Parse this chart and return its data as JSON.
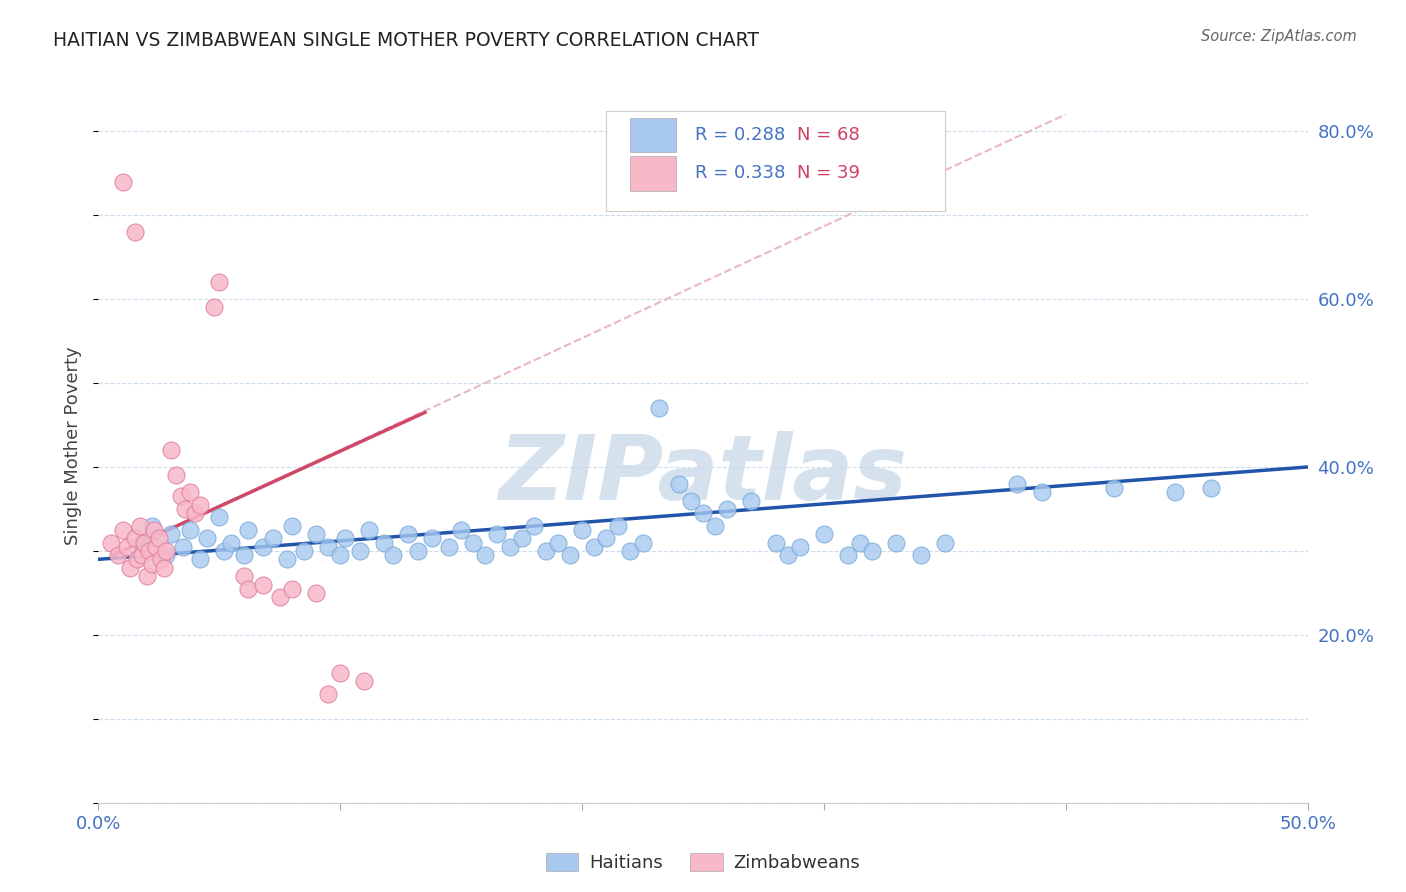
{
  "title": "HAITIAN VS ZIMBABWEAN SINGLE MOTHER POVERTY CORRELATION CHART",
  "source": "Source: ZipAtlas.com",
  "ylabel_label": "Single Mother Poverty",
  "xlim": [
    0.0,
    0.5
  ],
  "ylim": [
    0.0,
    0.85
  ],
  "xtick_positions": [
    0.0,
    0.1,
    0.2,
    0.3,
    0.4,
    0.5
  ],
  "xtick_labels": [
    "0.0%",
    "",
    "",
    "",
    "",
    "50.0%"
  ],
  "ytick_positions": [
    0.2,
    0.4,
    0.6,
    0.8
  ],
  "ytick_labels": [
    "20.0%",
    "40.0%",
    "60.0%",
    "80.0%"
  ],
  "watermark": "ZIPatlas",
  "blue_color": "#A8C8F0",
  "blue_edge_color": "#7AAAD8",
  "pink_color": "#F8B8C8",
  "pink_edge_color": "#E080A0",
  "blue_line_color": "#2255AA",
  "pink_line_color": "#D04868",
  "pink_dashed_color": "#E8B8C8",
  "grid_color": "#CCDDEE",
  "background_color": "#FFFFFF",
  "text_color": "#4472C4",
  "title_color": "#222222",
  "legend_r_color": "#4472C4",
  "legend_n_color": "#D04060",
  "blue_points": [
    [
      0.018,
      0.31
    ],
    [
      0.022,
      0.33
    ],
    [
      0.028,
      0.295
    ],
    [
      0.03,
      0.32
    ],
    [
      0.035,
      0.305
    ],
    [
      0.038,
      0.325
    ],
    [
      0.042,
      0.29
    ],
    [
      0.045,
      0.315
    ],
    [
      0.05,
      0.34
    ],
    [
      0.052,
      0.3
    ],
    [
      0.055,
      0.31
    ],
    [
      0.06,
      0.295
    ],
    [
      0.062,
      0.325
    ],
    [
      0.068,
      0.305
    ],
    [
      0.072,
      0.315
    ],
    [
      0.078,
      0.29
    ],
    [
      0.08,
      0.33
    ],
    [
      0.085,
      0.3
    ],
    [
      0.09,
      0.32
    ],
    [
      0.095,
      0.305
    ],
    [
      0.1,
      0.295
    ],
    [
      0.102,
      0.315
    ],
    [
      0.108,
      0.3
    ],
    [
      0.112,
      0.325
    ],
    [
      0.118,
      0.31
    ],
    [
      0.122,
      0.295
    ],
    [
      0.128,
      0.32
    ],
    [
      0.132,
      0.3
    ],
    [
      0.138,
      0.315
    ],
    [
      0.145,
      0.305
    ],
    [
      0.15,
      0.325
    ],
    [
      0.155,
      0.31
    ],
    [
      0.16,
      0.295
    ],
    [
      0.165,
      0.32
    ],
    [
      0.17,
      0.305
    ],
    [
      0.175,
      0.315
    ],
    [
      0.18,
      0.33
    ],
    [
      0.185,
      0.3
    ],
    [
      0.19,
      0.31
    ],
    [
      0.195,
      0.295
    ],
    [
      0.2,
      0.325
    ],
    [
      0.205,
      0.305
    ],
    [
      0.21,
      0.315
    ],
    [
      0.215,
      0.33
    ],
    [
      0.22,
      0.3
    ],
    [
      0.225,
      0.31
    ],
    [
      0.232,
      0.47
    ],
    [
      0.24,
      0.38
    ],
    [
      0.245,
      0.36
    ],
    [
      0.25,
      0.345
    ],
    [
      0.255,
      0.33
    ],
    [
      0.26,
      0.35
    ],
    [
      0.27,
      0.36
    ],
    [
      0.28,
      0.31
    ],
    [
      0.285,
      0.295
    ],
    [
      0.29,
      0.305
    ],
    [
      0.3,
      0.32
    ],
    [
      0.31,
      0.295
    ],
    [
      0.315,
      0.31
    ],
    [
      0.32,
      0.3
    ],
    [
      0.33,
      0.31
    ],
    [
      0.34,
      0.295
    ],
    [
      0.35,
      0.31
    ],
    [
      0.38,
      0.38
    ],
    [
      0.39,
      0.37
    ],
    [
      0.42,
      0.375
    ],
    [
      0.445,
      0.37
    ],
    [
      0.46,
      0.375
    ]
  ],
  "pink_points": [
    [
      0.005,
      0.31
    ],
    [
      0.008,
      0.295
    ],
    [
      0.01,
      0.325
    ],
    [
      0.012,
      0.305
    ],
    [
      0.013,
      0.28
    ],
    [
      0.015,
      0.315
    ],
    [
      0.016,
      0.29
    ],
    [
      0.017,
      0.33
    ],
    [
      0.018,
      0.295
    ],
    [
      0.019,
      0.31
    ],
    [
      0.02,
      0.27
    ],
    [
      0.021,
      0.3
    ],
    [
      0.022,
      0.285
    ],
    [
      0.023,
      0.325
    ],
    [
      0.024,
      0.305
    ],
    [
      0.025,
      0.315
    ],
    [
      0.026,
      0.29
    ],
    [
      0.027,
      0.28
    ],
    [
      0.028,
      0.3
    ],
    [
      0.03,
      0.42
    ],
    [
      0.032,
      0.39
    ],
    [
      0.034,
      0.365
    ],
    [
      0.036,
      0.35
    ],
    [
      0.038,
      0.37
    ],
    [
      0.04,
      0.345
    ],
    [
      0.042,
      0.355
    ],
    [
      0.048,
      0.59
    ],
    [
      0.05,
      0.62
    ],
    [
      0.01,
      0.74
    ],
    [
      0.015,
      0.68
    ],
    [
      0.06,
      0.27
    ],
    [
      0.062,
      0.255
    ],
    [
      0.068,
      0.26
    ],
    [
      0.075,
      0.245
    ],
    [
      0.08,
      0.255
    ],
    [
      0.09,
      0.25
    ],
    [
      0.095,
      0.13
    ],
    [
      0.1,
      0.155
    ],
    [
      0.11,
      0.145
    ]
  ],
  "blue_line": {
    "x": [
      0.0,
      0.5
    ],
    "y": [
      0.29,
      0.4
    ]
  },
  "pink_line": {
    "x": [
      0.006,
      0.135
    ],
    "y": [
      0.295,
      0.465
    ]
  },
  "pink_dashed": {
    "x": [
      0.006,
      0.4
    ],
    "y": [
      0.295,
      0.82
    ]
  }
}
